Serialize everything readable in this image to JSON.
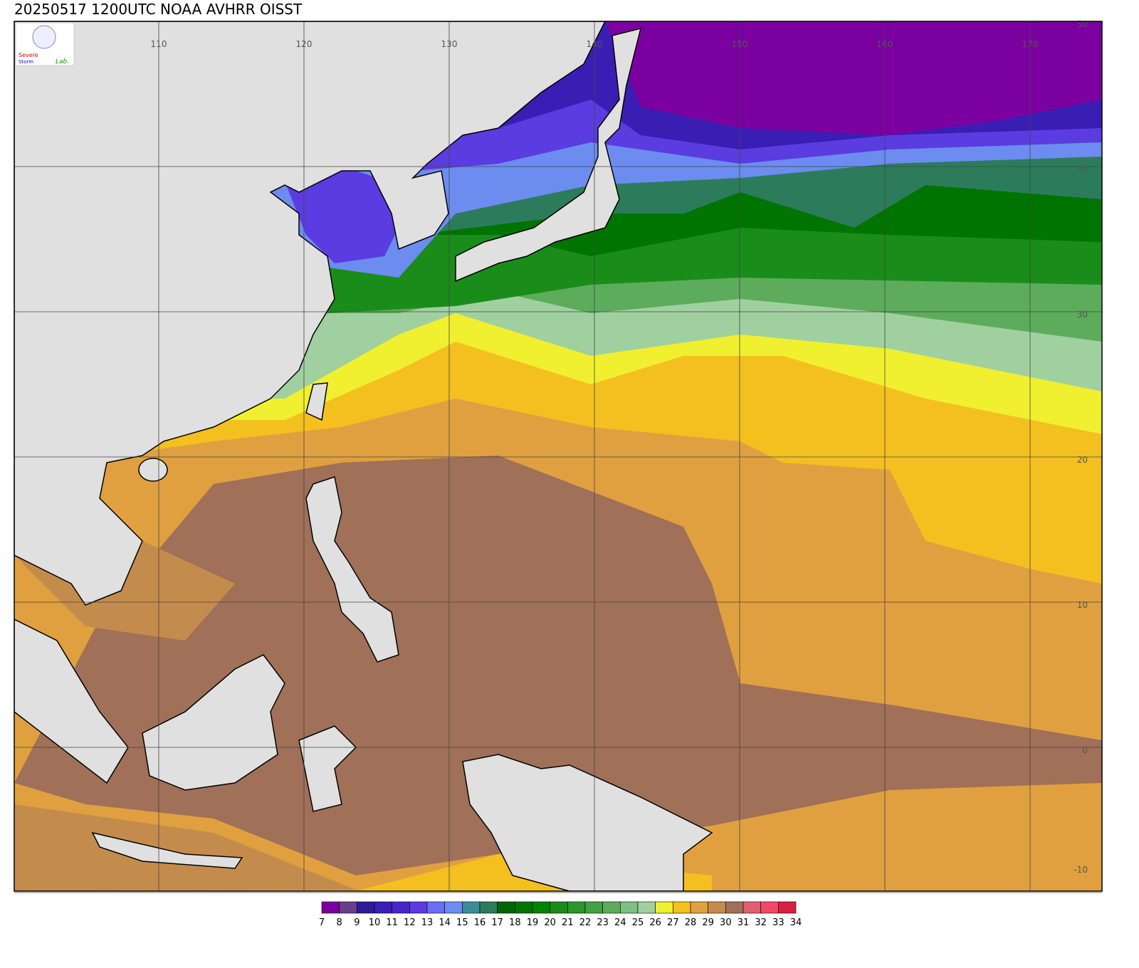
{
  "title": "20250517 1200UTC NOAA AVHRR OISST",
  "logo": [
    "Severe",
    "Storm",
    "Lab."
  ],
  "map": {
    "lon_labels": [
      110,
      120,
      130,
      140,
      150,
      160,
      170
    ],
    "lat_labels": [
      50,
      40,
      30,
      20,
      10,
      0,
      -10
    ]
  },
  "colorbar": {
    "labels": [
      7,
      8,
      9,
      10,
      11,
      12,
      13,
      14,
      15,
      16,
      17,
      18,
      19,
      20,
      21,
      22,
      23,
      24,
      25,
      26,
      27,
      28,
      29,
      30,
      31,
      32,
      33,
      34
    ],
    "colors": [
      "#7a00a0",
      "#6a3c8c",
      "#2e1a98",
      "#3a1eb4",
      "#4a24c8",
      "#5a3ce0",
      "#6a6ef0",
      "#6c8cf0",
      "#3c8c9c",
      "#2c7c5c",
      "#006400",
      "#007400",
      "#008400",
      "#1a8c1a",
      "#2c962c",
      "#44a044",
      "#5cac5c",
      "#80c080",
      "#a0d0a0",
      "#f0f030",
      "#f4c020",
      "#e0a040",
      "#c48c4c",
      "#a07058",
      "#e06070",
      "#f04868",
      "#d82040"
    ]
  }
}
